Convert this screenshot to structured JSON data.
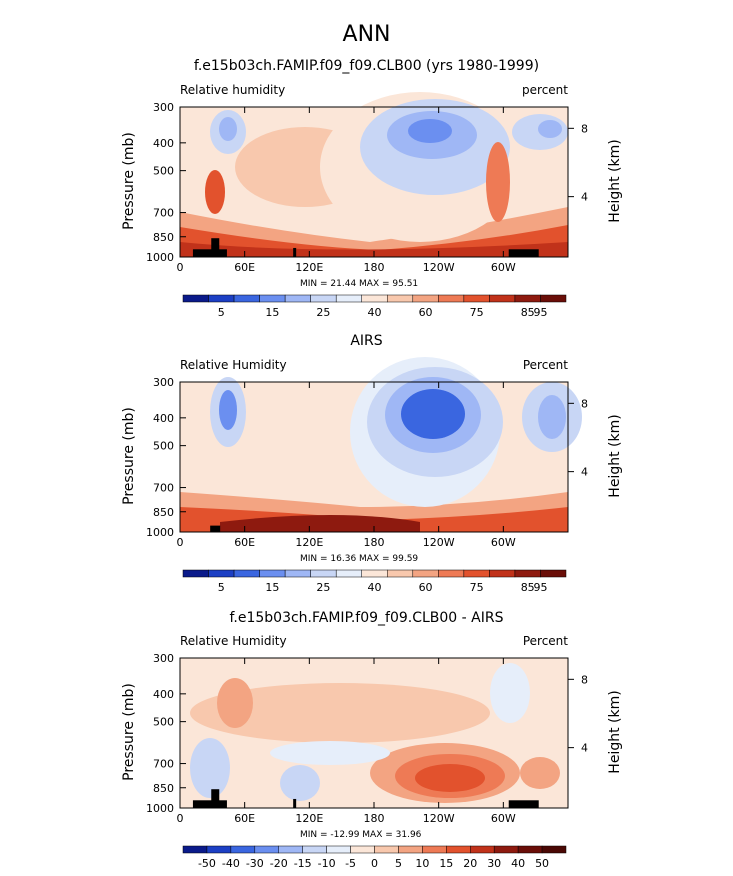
{
  "title": "ANN",
  "panels": [
    {
      "title": "f.e15b03ch.FAMIP.f09_f09.CLB00 (yrs 1980-1999)",
      "left_label": "Relative humidity",
      "right_label": "percent",
      "y_label": "Pressure (mb)",
      "y2_label": "Height (km)",
      "stats": "MIN =   21.44   MAX =   95.51",
      "colorbar_labels": [
        "5",
        "15",
        "25",
        "40",
        "60",
        "75",
        "85",
        "95"
      ]
    },
    {
      "title": "AIRS",
      "left_label": "Relative Humidity",
      "right_label": "Percent",
      "y_label": "Pressure (mb)",
      "y2_label": "Height (km)",
      "stats": "MIN =   16.36   MAX =   99.59",
      "colorbar_labels": [
        "5",
        "15",
        "25",
        "40",
        "60",
        "75",
        "85",
        "95"
      ]
    },
    {
      "title": "f.e15b03ch.FAMIP.f09_f09.CLB00 - AIRS",
      "left_label": "Relative Humidity",
      "right_label": "Percent",
      "y_label": "Pressure (mb)",
      "y2_label": "Height (km)",
      "stats": "MIN =  -12.99   MAX =   31.96",
      "colorbar_labels": [
        "-50",
        "-40",
        "-30",
        "-20",
        "-15",
        "-10",
        "-5",
        "0",
        "5",
        "10",
        "15",
        "20",
        "30",
        "40",
        "50"
      ]
    }
  ],
  "axes": {
    "x_ticks": [
      "0",
      "60E",
      "120E",
      "180",
      "120W",
      "60W"
    ],
    "y_ticks": [
      "300",
      "400",
      "500",
      "700",
      "850",
      "1000"
    ],
    "y2_ticks": [
      "8",
      "4"
    ]
  },
  "colors": {
    "rh_scale": [
      "#0a1a8a",
      "#1c3fc4",
      "#3a66e0",
      "#6b8ff0",
      "#9fb7f5",
      "#c8d6f5",
      "#e6eefa",
      "#fbe6d8",
      "#f8c8ad",
      "#f3a482",
      "#ee7a55",
      "#e2522d",
      "#c1321a",
      "#8e1a0f",
      "#6a0e08"
    ],
    "diff_scale": [
      "#0a1a8a",
      "#1c3fc4",
      "#3a66e0",
      "#6b8ff0",
      "#9fb7f5",
      "#c8d6f5",
      "#e6eefa",
      "#fbe6d8",
      "#f8c8ad",
      "#f3a482",
      "#ee7a55",
      "#e2522d",
      "#c1321a",
      "#8e1a0f",
      "#6a0e08",
      "#4a0804"
    ],
    "background_fill": "#fce4d4"
  },
  "chart_data": [
    {
      "type": "heatmap",
      "title": "f.e15b03ch.FAMIP.f09_f09.CLB00 (yrs 1980-1999)",
      "xlabel": "",
      "ylabel": "Pressure (mb)",
      "y2label": "Height (km)",
      "x_range": [
        0,
        360
      ],
      "y_range": [
        300,
        1000
      ],
      "y_scale": "log-pressure",
      "min": 21.44,
      "max": 95.51,
      "levels": [
        5,
        10,
        15,
        20,
        25,
        30,
        40,
        50,
        60,
        70,
        75,
        80,
        85,
        90,
        95
      ],
      "features": [
        {
          "label": "dry_upper_trop_central_pacific",
          "lon": 255,
          "p": 400,
          "value": 25
        },
        {
          "label": "dry_upper_trop_atlantic",
          "lon": 335,
          "p": 400,
          "value": 30
        },
        {
          "label": "dry_upper_trop_africa",
          "lon": 45,
          "p": 400,
          "value": 30
        },
        {
          "label": "moist_boundary_layer",
          "lon": 180,
          "p": 900,
          "value": 90
        }
      ]
    },
    {
      "type": "heatmap",
      "title": "AIRS",
      "xlabel": "",
      "ylabel": "Pressure (mb)",
      "y2label": "Height (km)",
      "x_range": [
        0,
        360
      ],
      "y_range": [
        300,
        1000
      ],
      "y_scale": "log-pressure",
      "min": 16.36,
      "max": 99.59,
      "levels": [
        5,
        10,
        15,
        20,
        25,
        30,
        40,
        50,
        60,
        70,
        75,
        80,
        85,
        90,
        95
      ],
      "features": [
        {
          "label": "dry_upper_trop_central_pacific",
          "lon": 245,
          "p": 450,
          "value": 20
        },
        {
          "label": "dry_upper_trop_atlantic",
          "lon": 340,
          "p": 400,
          "value": 30
        },
        {
          "label": "dry_upper_trop_africa",
          "lon": 45,
          "p": 400,
          "value": 25
        },
        {
          "label": "moist_boundary_layer",
          "lon": 160,
          "p": 920,
          "value": 95
        }
      ]
    },
    {
      "type": "heatmap",
      "title": "f.e15b03ch.FAMIP.f09_f09.CLB00 - AIRS",
      "xlabel": "",
      "ylabel": "Pressure (mb)",
      "y2label": "Height (km)",
      "x_range": [
        0,
        360
      ],
      "y_range": [
        300,
        1000
      ],
      "y_scale": "log-pressure",
      "min": -12.99,
      "max": 31.96,
      "levels": [
        -50,
        -40,
        -30,
        -20,
        -15,
        -10,
        -5,
        0,
        5,
        10,
        15,
        20,
        30,
        40,
        50
      ],
      "features": [
        {
          "label": "moist_bias_east_pacific_lower",
          "lon": 240,
          "p": 820,
          "value": 25
        },
        {
          "label": "moist_bias_africa_mid",
          "lon": 50,
          "p": 550,
          "value": 15
        },
        {
          "label": "dry_bias_maritime_continent",
          "lon": 120,
          "p": 900,
          "value": -5
        },
        {
          "label": "dry_bias_south_america",
          "lon": 300,
          "p": 450,
          "value": -5
        }
      ]
    }
  ]
}
